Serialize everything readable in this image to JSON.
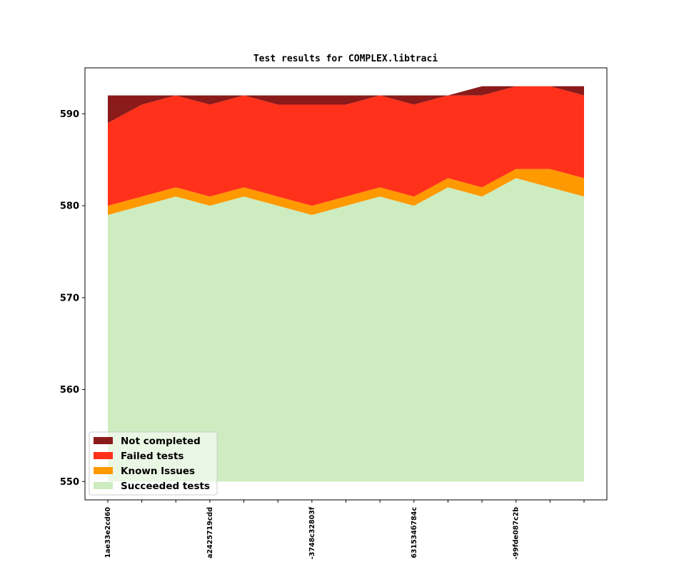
{
  "chart_data": {
    "type": "area",
    "stacked": true,
    "title": "Test results for COMPLEX.libtraci",
    "xlabel": "",
    "ylabel": "",
    "ylim": [
      548,
      595
    ],
    "yticks": [
      550,
      560,
      570,
      580,
      590
    ],
    "baseline": 550,
    "x_count": 15,
    "x_tick_labels": [
      {
        "index": 0,
        "label": "1ae33e2cd60"
      },
      {
        "index": 3,
        "label": "a2425719cdd"
      },
      {
        "index": 6,
        "label": "-3748c32803f"
      },
      {
        "index": 9,
        "label": "631534б784c"
      },
      {
        "index": 12,
        "label": "-99fde087c2b"
      }
    ],
    "legend_position": "lower-left",
    "grid": false,
    "series": [
      {
        "name": "Succeeded tests",
        "color": "#cdecbf",
        "cumulative": [
          579,
          580,
          581,
          580,
          581,
          580,
          579,
          580,
          581,
          580,
          582,
          581,
          583,
          582,
          581
        ]
      },
      {
        "name": "Known Issues",
        "color": "#ff9900",
        "cumulative": [
          580,
          581,
          582,
          581,
          582,
          581,
          580,
          581,
          582,
          581,
          583,
          582,
          584,
          584,
          583
        ]
      },
      {
        "name": "Failed tests",
        "color": "#ff311a",
        "cumulative": [
          589,
          591,
          592,
          591,
          592,
          591,
          591,
          591,
          592,
          591,
          592,
          592,
          593,
          593,
          592
        ]
      },
      {
        "name": "Not completed",
        "color": "#8b1a1a",
        "cumulative": [
          592,
          592,
          592,
          592,
          592,
          592,
          592,
          592,
          592,
          592,
          592,
          593,
          593,
          593,
          593
        ]
      }
    ],
    "legend_order": [
      "Not completed",
      "Failed tests",
      "Known Issues",
      "Succeeded tests"
    ]
  }
}
